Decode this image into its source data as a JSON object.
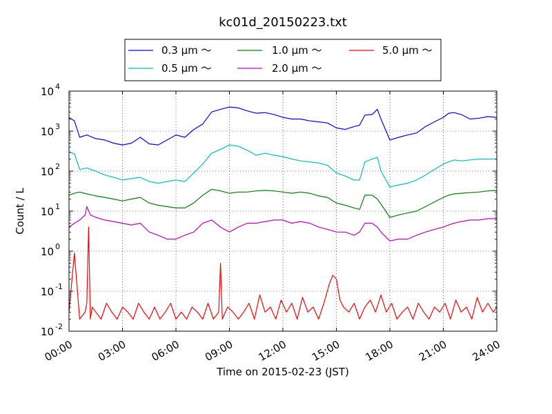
{
  "chart_data": {
    "type": "line",
    "title": "kc01d_20150223.txt",
    "xlabel": "Time on 2015-02-23 (JST)",
    "ylabel": "Count / L",
    "y_scale": "log",
    "ylim": [
      0.01,
      10000
    ],
    "xlim": [
      "00:00",
      "24:00"
    ],
    "x_unit": "hours",
    "grid": true,
    "legend_position": "top",
    "x_ticks": [
      "00:00",
      "03:00",
      "06:00",
      "09:00",
      "12:00",
      "15:00",
      "18:00",
      "21:00",
      "24:00"
    ],
    "y_ticks": [
      {
        "base": "10",
        "exp": "-2"
      },
      {
        "base": "10",
        "exp": "-1"
      },
      {
        "base": "10",
        "exp": "0"
      },
      {
        "base": "10",
        "exp": "1"
      },
      {
        "base": "10",
        "exp": "2"
      },
      {
        "base": "10",
        "exp": "3"
      },
      {
        "base": "10",
        "exp": "4"
      }
    ],
    "series": [
      {
        "name": "0.3 μm ～",
        "color": "#0000ff",
        "x": [
          0,
          0.3,
          0.6,
          1,
          1.5,
          2,
          2.5,
          3,
          3.5,
          4,
          4.5,
          5,
          5.5,
          6,
          6.5,
          7,
          7.5,
          8,
          8.5,
          9,
          9.5,
          10,
          10.5,
          11,
          11.5,
          12,
          12.5,
          13,
          13.5,
          14,
          14.5,
          15,
          15.5,
          16,
          16.3,
          16.6,
          17,
          17.3,
          17.5,
          18,
          18.5,
          19,
          19.5,
          20,
          20.5,
          21,
          21.3,
          21.6,
          22,
          22.5,
          23,
          23.5,
          24
        ],
        "y": [
          2200,
          1800,
          700,
          800,
          650,
          600,
          500,
          450,
          500,
          700,
          480,
          450,
          600,
          800,
          700,
          1100,
          1500,
          3000,
          3500,
          4000,
          3800,
          3200,
          2800,
          2900,
          2600,
          2200,
          2000,
          2000,
          1800,
          1700,
          1600,
          1200,
          1100,
          1300,
          1400,
          2500,
          2600,
          3500,
          2000,
          600,
          700,
          800,
          900,
          1300,
          1700,
          2200,
          2800,
          2900,
          2600,
          2000,
          2100,
          2300,
          2200
        ]
      },
      {
        "name": "0.5 μm ～",
        "color": "#00bfbf",
        "x": [
          0,
          0.3,
          0.6,
          1,
          1.5,
          2,
          2.5,
          3,
          3.5,
          4,
          4.5,
          5,
          5.5,
          6,
          6.5,
          7,
          7.5,
          8,
          8.5,
          9,
          9.5,
          10,
          10.5,
          11,
          11.5,
          12,
          12.5,
          13,
          13.5,
          14,
          14.5,
          15,
          15.5,
          16,
          16.3,
          16.6,
          17,
          17.3,
          17.5,
          18,
          18.5,
          19,
          19.5,
          20,
          20.5,
          21,
          21.3,
          21.6,
          22,
          22.5,
          23,
          23.5,
          24
        ],
        "y": [
          300,
          270,
          110,
          120,
          100,
          80,
          70,
          60,
          65,
          70,
          55,
          50,
          55,
          60,
          55,
          90,
          150,
          280,
          350,
          450,
          420,
          330,
          250,
          280,
          250,
          230,
          200,
          180,
          170,
          160,
          140,
          90,
          75,
          60,
          60,
          170,
          200,
          220,
          100,
          40,
          45,
          50,
          60,
          80,
          110,
          150,
          170,
          190,
          180,
          190,
          200,
          200,
          200
        ]
      },
      {
        "name": "1.0 μm ～",
        "color": "#008000",
        "x": [
          0,
          0.3,
          0.6,
          1,
          1.5,
          2,
          2.5,
          3,
          3.5,
          4,
          4.5,
          5,
          5.5,
          6,
          6.5,
          7,
          7.5,
          8,
          8.5,
          9,
          9.5,
          10,
          10.5,
          11,
          11.5,
          12,
          12.5,
          13,
          13.5,
          14,
          14.5,
          15,
          15.5,
          16,
          16.3,
          16.6,
          17,
          17.3,
          17.5,
          18,
          18.5,
          19,
          19.5,
          20,
          20.5,
          21,
          21.3,
          21.6,
          22,
          22.5,
          23,
          23.5,
          24
        ],
        "y": [
          25,
          28,
          30,
          27,
          24,
          22,
          20,
          18,
          20,
          22,
          16,
          14,
          13,
          12,
          12,
          16,
          25,
          35,
          32,
          28,
          30,
          30,
          32,
          33,
          32,
          30,
          28,
          30,
          28,
          24,
          22,
          16,
          14,
          12,
          11,
          25,
          25,
          20,
          15,
          7,
          8,
          9,
          10,
          13,
          17,
          22,
          25,
          27,
          28,
          29,
          30,
          32,
          33
        ]
      },
      {
        "name": "2.0 μm ～",
        "color": "#bf00bf",
        "x": [
          0,
          0.3,
          0.6,
          0.9,
          1,
          1.2,
          1.5,
          2,
          2.5,
          3,
          3.5,
          4,
          4.5,
          5,
          5.5,
          6,
          6.5,
          7,
          7.5,
          8,
          8.5,
          9,
          9.5,
          10,
          10.5,
          11,
          11.5,
          12,
          12.5,
          13,
          13.5,
          14,
          14.5,
          15,
          15.5,
          16,
          16.3,
          16.6,
          17,
          17.3,
          17.5,
          18,
          18.5,
          19,
          19.5,
          20,
          20.5,
          21,
          21.3,
          21.6,
          22,
          22.5,
          23,
          23.5,
          24
        ],
        "y": [
          4,
          5,
          6,
          8,
          13,
          8,
          7,
          6,
          5.5,
          5,
          4.5,
          5,
          3,
          2.5,
          2,
          2,
          2.5,
          3,
          5,
          6,
          4,
          3,
          4,
          5,
          5,
          5.5,
          6,
          6,
          5,
          5.5,
          5,
          4,
          3.5,
          3,
          3,
          2.5,
          3,
          5,
          5,
          4,
          3,
          1.8,
          2,
          2,
          2.5,
          3,
          3.5,
          4,
          4.5,
          5,
          5.5,
          6,
          6,
          6.5,
          6.5
        ]
      },
      {
        "name": "5.0 μm ～",
        "color": "#ff0000",
        "x": [
          0,
          0.3,
          0.6,
          0.9,
          1.0,
          1.1,
          1.2,
          1.3,
          1.5,
          1.8,
          2.1,
          2.4,
          2.7,
          3.0,
          3.3,
          3.6,
          3.9,
          4.2,
          4.5,
          4.8,
          5.1,
          5.4,
          5.7,
          6.0,
          6.3,
          6.6,
          6.9,
          7.2,
          7.5,
          7.8,
          8.1,
          8.4,
          8.5,
          8.6,
          8.9,
          9.2,
          9.5,
          9.8,
          10.1,
          10.4,
          10.7,
          11.0,
          11.3,
          11.6,
          11.9,
          12.2,
          12.5,
          12.8,
          13.1,
          13.4,
          13.7,
          14.0,
          14.3,
          14.6,
          14.8,
          15.0,
          15.2,
          15.4,
          15.7,
          16.0,
          16.3,
          16.6,
          16.9,
          17.2,
          17.5,
          17.8,
          18.1,
          18.4,
          18.7,
          19.0,
          19.3,
          19.6,
          19.9,
          20.2,
          20.5,
          20.8,
          21.1,
          21.4,
          21.7,
          22.0,
          22.3,
          22.6,
          22.9,
          23.2,
          23.5,
          23.8,
          24.0
        ],
        "y": [
          0.03,
          0.9,
          0.02,
          0.03,
          0.05,
          4,
          0.02,
          0.04,
          0.03,
          0.02,
          0.05,
          0.03,
          0.02,
          0.04,
          0.03,
          0.02,
          0.05,
          0.03,
          0.02,
          0.04,
          0.02,
          0.03,
          0.05,
          0.02,
          0.03,
          0.02,
          0.04,
          0.03,
          0.02,
          0.05,
          0.02,
          0.03,
          0.5,
          0.02,
          0.04,
          0.03,
          0.02,
          0.03,
          0.05,
          0.02,
          0.08,
          0.03,
          0.04,
          0.02,
          0.06,
          0.03,
          0.05,
          0.02,
          0.07,
          0.03,
          0.04,
          0.02,
          0.05,
          0.15,
          0.25,
          0.2,
          0.06,
          0.04,
          0.03,
          0.05,
          0.02,
          0.04,
          0.06,
          0.03,
          0.08,
          0.03,
          0.05,
          0.02,
          0.03,
          0.04,
          0.02,
          0.05,
          0.03,
          0.02,
          0.04,
          0.03,
          0.05,
          0.02,
          0.06,
          0.03,
          0.04,
          0.02,
          0.07,
          0.03,
          0.05,
          0.03,
          0.04
        ]
      }
    ]
  }
}
